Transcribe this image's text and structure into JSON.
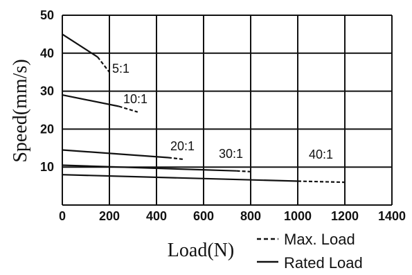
{
  "chart_data": {
    "type": "line",
    "xlabel": "Load(N)",
    "ylabel": "Speed(mm/s)",
    "xlim": [
      0,
      1400
    ],
    "ylim": [
      0,
      50
    ],
    "x_ticks": [
      "0",
      "200",
      "400",
      "600",
      "800",
      "1000",
      "1200",
      "1400"
    ],
    "y_ticks": [
      "10",
      "20",
      "30",
      "40",
      "50"
    ],
    "grid": true,
    "legend": {
      "placement": "bottom-right",
      "entries": [
        {
          "label": "Max. Load",
          "style": "dashed"
        },
        {
          "label": "Rated Load",
          "style": "solid"
        }
      ]
    },
    "series": [
      {
        "name": "5:1",
        "rated": [
          [
            0,
            45
          ],
          [
            150,
            39
          ]
        ],
        "max": [
          [
            150,
            39
          ],
          [
            200,
            35
          ]
        ]
      },
      {
        "name": "10:1",
        "rated": [
          [
            0,
            29
          ],
          [
            240,
            26
          ]
        ],
        "max": [
          [
            240,
            26
          ],
          [
            320,
            24.5
          ]
        ]
      },
      {
        "name": "20:1",
        "rated": [
          [
            0,
            14.5
          ],
          [
            450,
            12.5
          ]
        ],
        "max": [
          [
            450,
            12.5
          ],
          [
            520,
            12
          ]
        ]
      },
      {
        "name": "30:1",
        "rated": [
          [
            0,
            10.5
          ],
          [
            740,
            9
          ]
        ],
        "max": [
          [
            740,
            9
          ],
          [
            800,
            8.8
          ]
        ]
      },
      {
        "name": "40:1",
        "rated": [
          [
            0,
            8
          ],
          [
            1000,
            6.3
          ]
        ],
        "max": [
          [
            1000,
            6.3
          ],
          [
            1200,
            6
          ]
        ]
      }
    ]
  }
}
